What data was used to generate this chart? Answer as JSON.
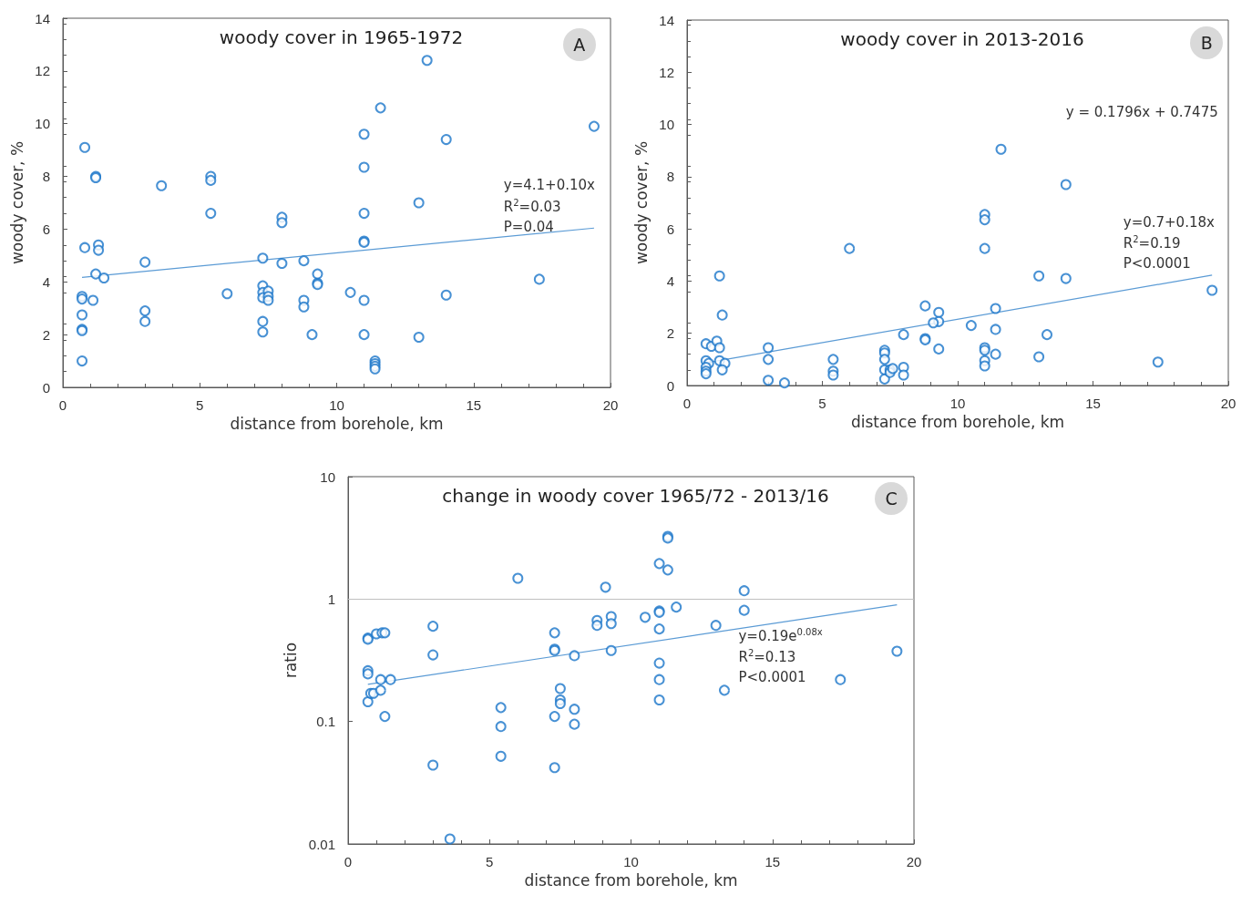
{
  "chart_data": [
    {
      "type": "scatter",
      "title": "woody cover in 1965-1972",
      "xlabel": "distance from borehole, km",
      "ylabel": "woody cover, %",
      "xlim": [
        0,
        20
      ],
      "xticks": [
        0,
        5,
        10,
        15,
        20
      ],
      "ylim": [
        0,
        14
      ],
      "yticks": [
        0,
        2,
        4,
        6,
        8,
        10,
        12,
        14
      ],
      "marker": "circle",
      "series": [
        {
          "color": "#1a75c9",
          "x": [
            0.8,
            1.2,
            1.2,
            3.6,
            5.4,
            5.4,
            5.4,
            0.8,
            1.3,
            1.3,
            1.2,
            1.5,
            0.7,
            0.7,
            1.1,
            0.7,
            0.7,
            0.7,
            0.7,
            3.0,
            3.0,
            3.0,
            6.0,
            7.3,
            7.3,
            7.3,
            7.3,
            7.5,
            7.5,
            7.5,
            7.3,
            7.3,
            8.0,
            8.0,
            8.0,
            8.8,
            8.8,
            8.8,
            9.3,
            9.3,
            9.3,
            9.1,
            10.5,
            11.0,
            11.0,
            11.0,
            11.0,
            11.0,
            11.0,
            11.0,
            11.4,
            11.4,
            11.4,
            11.4,
            11.6,
            13.0,
            13.0,
            13.3,
            14.0,
            14.0,
            17.4,
            19.4
          ],
          "values": [
            9.1,
            8.0,
            7.95,
            7.65,
            8.0,
            7.85,
            6.6,
            5.3,
            5.4,
            5.2,
            4.3,
            4.15,
            3.45,
            3.35,
            3.3,
            2.75,
            2.2,
            2.15,
            1.0,
            4.75,
            2.9,
            2.5,
            3.55,
            4.9,
            3.85,
            3.6,
            3.4,
            3.65,
            3.45,
            3.3,
            2.5,
            2.1,
            6.45,
            6.25,
            4.7,
            4.8,
            3.3,
            3.05,
            4.3,
            3.95,
            3.9,
            2.0,
            3.6,
            9.6,
            8.35,
            6.6,
            5.55,
            5.5,
            3.3,
            2.0,
            1.0,
            0.9,
            0.8,
            0.7,
            10.6,
            7.0,
            1.9,
            12.4,
            9.4,
            3.5,
            4.1,
            9.9
          ]
        },
        {
          "type": "line",
          "marker": "none",
          "color": "#5b9bd5",
          "x": [
            0.7,
            19.4
          ],
          "values": [
            4.17,
            6.04
          ]
        }
      ],
      "annotations": [
        "y=4.1+0.10x",
        "R$^{2}$=0.03",
        "P=0.04",
        "A"
      ]
    },
    {
      "type": "scatter",
      "title": "woody cover in 2013-2016",
      "xlabel": "distance from borehole, km",
      "ylabel": "woody cover, %",
      "xlim": [
        0,
        20
      ],
      "xticks": [
        0,
        5,
        10,
        15,
        20
      ],
      "ylim": [
        0,
        14
      ],
      "yticks": [
        0,
        2,
        4,
        6,
        8,
        10,
        12,
        14
      ],
      "marker": "circle",
      "series": [
        {
          "color": "#1a75c9",
          "x": [
            0.7,
            0.9,
            1.1,
            1.2,
            1.2,
            1.3,
            0.7,
            0.8,
            0.7,
            0.7,
            0.7,
            1.2,
            1.4,
            1.3,
            3.0,
            3.0,
            3.0,
            3.6,
            5.4,
            5.4,
            5.4,
            6.0,
            7.3,
            7.3,
            7.3,
            7.3,
            7.3,
            7.5,
            7.5,
            7.6,
            8.0,
            8.0,
            8.0,
            8.8,
            8.8,
            8.8,
            9.3,
            9.3,
            9.1,
            9.3,
            10.5,
            11.0,
            11.0,
            11.0,
            11.0,
            11.0,
            11.0,
            11.0,
            11.6,
            11.4,
            11.4,
            11.4,
            13.0,
            13.0,
            13.3,
            14.0,
            14.0,
            17.4,
            19.4
          ],
          "values": [
            1.6,
            1.5,
            1.7,
            1.45,
            4.2,
            2.7,
            0.95,
            0.85,
            0.7,
            0.55,
            0.45,
            0.95,
            0.85,
            0.6,
            1.45,
            1.0,
            0.2,
            0.1,
            1.0,
            0.55,
            0.4,
            5.25,
            1.35,
            1.25,
            1.0,
            0.6,
            0.25,
            0.6,
            0.5,
            0.65,
            0.7,
            0.4,
            1.95,
            3.05,
            1.8,
            1.75,
            2.8,
            2.45,
            2.4,
            1.4,
            2.3,
            6.55,
            6.35,
            5.25,
            1.45,
            1.35,
            0.95,
            0.75,
            9.05,
            2.95,
            2.15,
            1.2,
            4.2,
            1.1,
            1.95,
            7.7,
            4.1,
            0.9,
            3.65
          ]
        },
        {
          "type": "line",
          "marker": "none",
          "color": "#5b9bd5",
          "x": [
            0.7,
            19.4
          ],
          "values": [
            0.87,
            4.23
          ]
        }
      ],
      "annotations": [
        "y = 0.1796x + 0.7475",
        "y=0.7+0.18x",
        "R$^{2}$=0.19",
        "P<0.0001",
        "B"
      ]
    },
    {
      "type": "scatter",
      "title": "change in woody cover 1965/72 - 2013/16",
      "xlabel": "distance from borehole, km",
      "ylabel": "ratio",
      "xlim": [
        0,
        20
      ],
      "xticks": [
        0,
        5,
        10,
        15,
        20
      ],
      "ylim": [
        0.01,
        10
      ],
      "yticks": [
        0.01,
        0.1,
        1,
        10
      ],
      "log": "y",
      "marker": "circle",
      "series": [
        {
          "color": "#1a75c9",
          "x": [
            0.7,
            0.7,
            0.7,
            0.7,
            0.7,
            0.8,
            0.9,
            1.0,
            1.2,
            1.3,
            1.15,
            1.15,
            1.5,
            1.3,
            3.0,
            3.0,
            3.0,
            3.6,
            5.4,
            5.4,
            5.4,
            6.0,
            7.3,
            7.3,
            7.3,
            7.3,
            7.3,
            7.5,
            7.5,
            7.5,
            8.0,
            8.0,
            8.0,
            8.8,
            8.8,
            9.1,
            9.3,
            9.3,
            9.3,
            10.5,
            11.0,
            11.0,
            11.0,
            11.0,
            11.0,
            11.0,
            11.0,
            11.3,
            11.3,
            11.3,
            11.6,
            13.0,
            13.3,
            14.0,
            14.0,
            17.4,
            19.4
          ],
          "values": [
            0.48,
            0.47,
            0.26,
            0.245,
            0.145,
            0.17,
            0.17,
            0.52,
            0.53,
            0.53,
            0.22,
            0.18,
            0.22,
            0.11,
            0.6,
            0.35,
            0.044,
            0.011,
            0.13,
            0.091,
            0.052,
            1.48,
            0.53,
            0.39,
            0.38,
            0.11,
            0.042,
            0.186,
            0.15,
            0.14,
            0.345,
            0.126,
            0.095,
            0.67,
            0.61,
            1.25,
            0.72,
            0.63,
            0.38,
            0.71,
            1.95,
            0.8,
            0.78,
            0.57,
            0.3,
            0.22,
            0.15,
            3.25,
            3.15,
            1.73,
            0.86,
            0.61,
            0.18,
            1.17,
            0.81,
            0.22,
            0.375
          ]
        },
        {
          "type": "line",
          "marker": "none",
          "color": "#5b9bd5",
          "x": [
            0.7,
            19.4
          ],
          "values": [
            0.201,
            0.897
          ]
        }
      ],
      "ref_lines": [
        {
          "axis": "y",
          "value": 1,
          "color": "#bfbfbf"
        }
      ],
      "annotations": [
        "y=0.19e$^{0.08x}$",
        "R$^{2}$=0.13",
        "P<0.0001",
        "C"
      ]
    }
  ]
}
